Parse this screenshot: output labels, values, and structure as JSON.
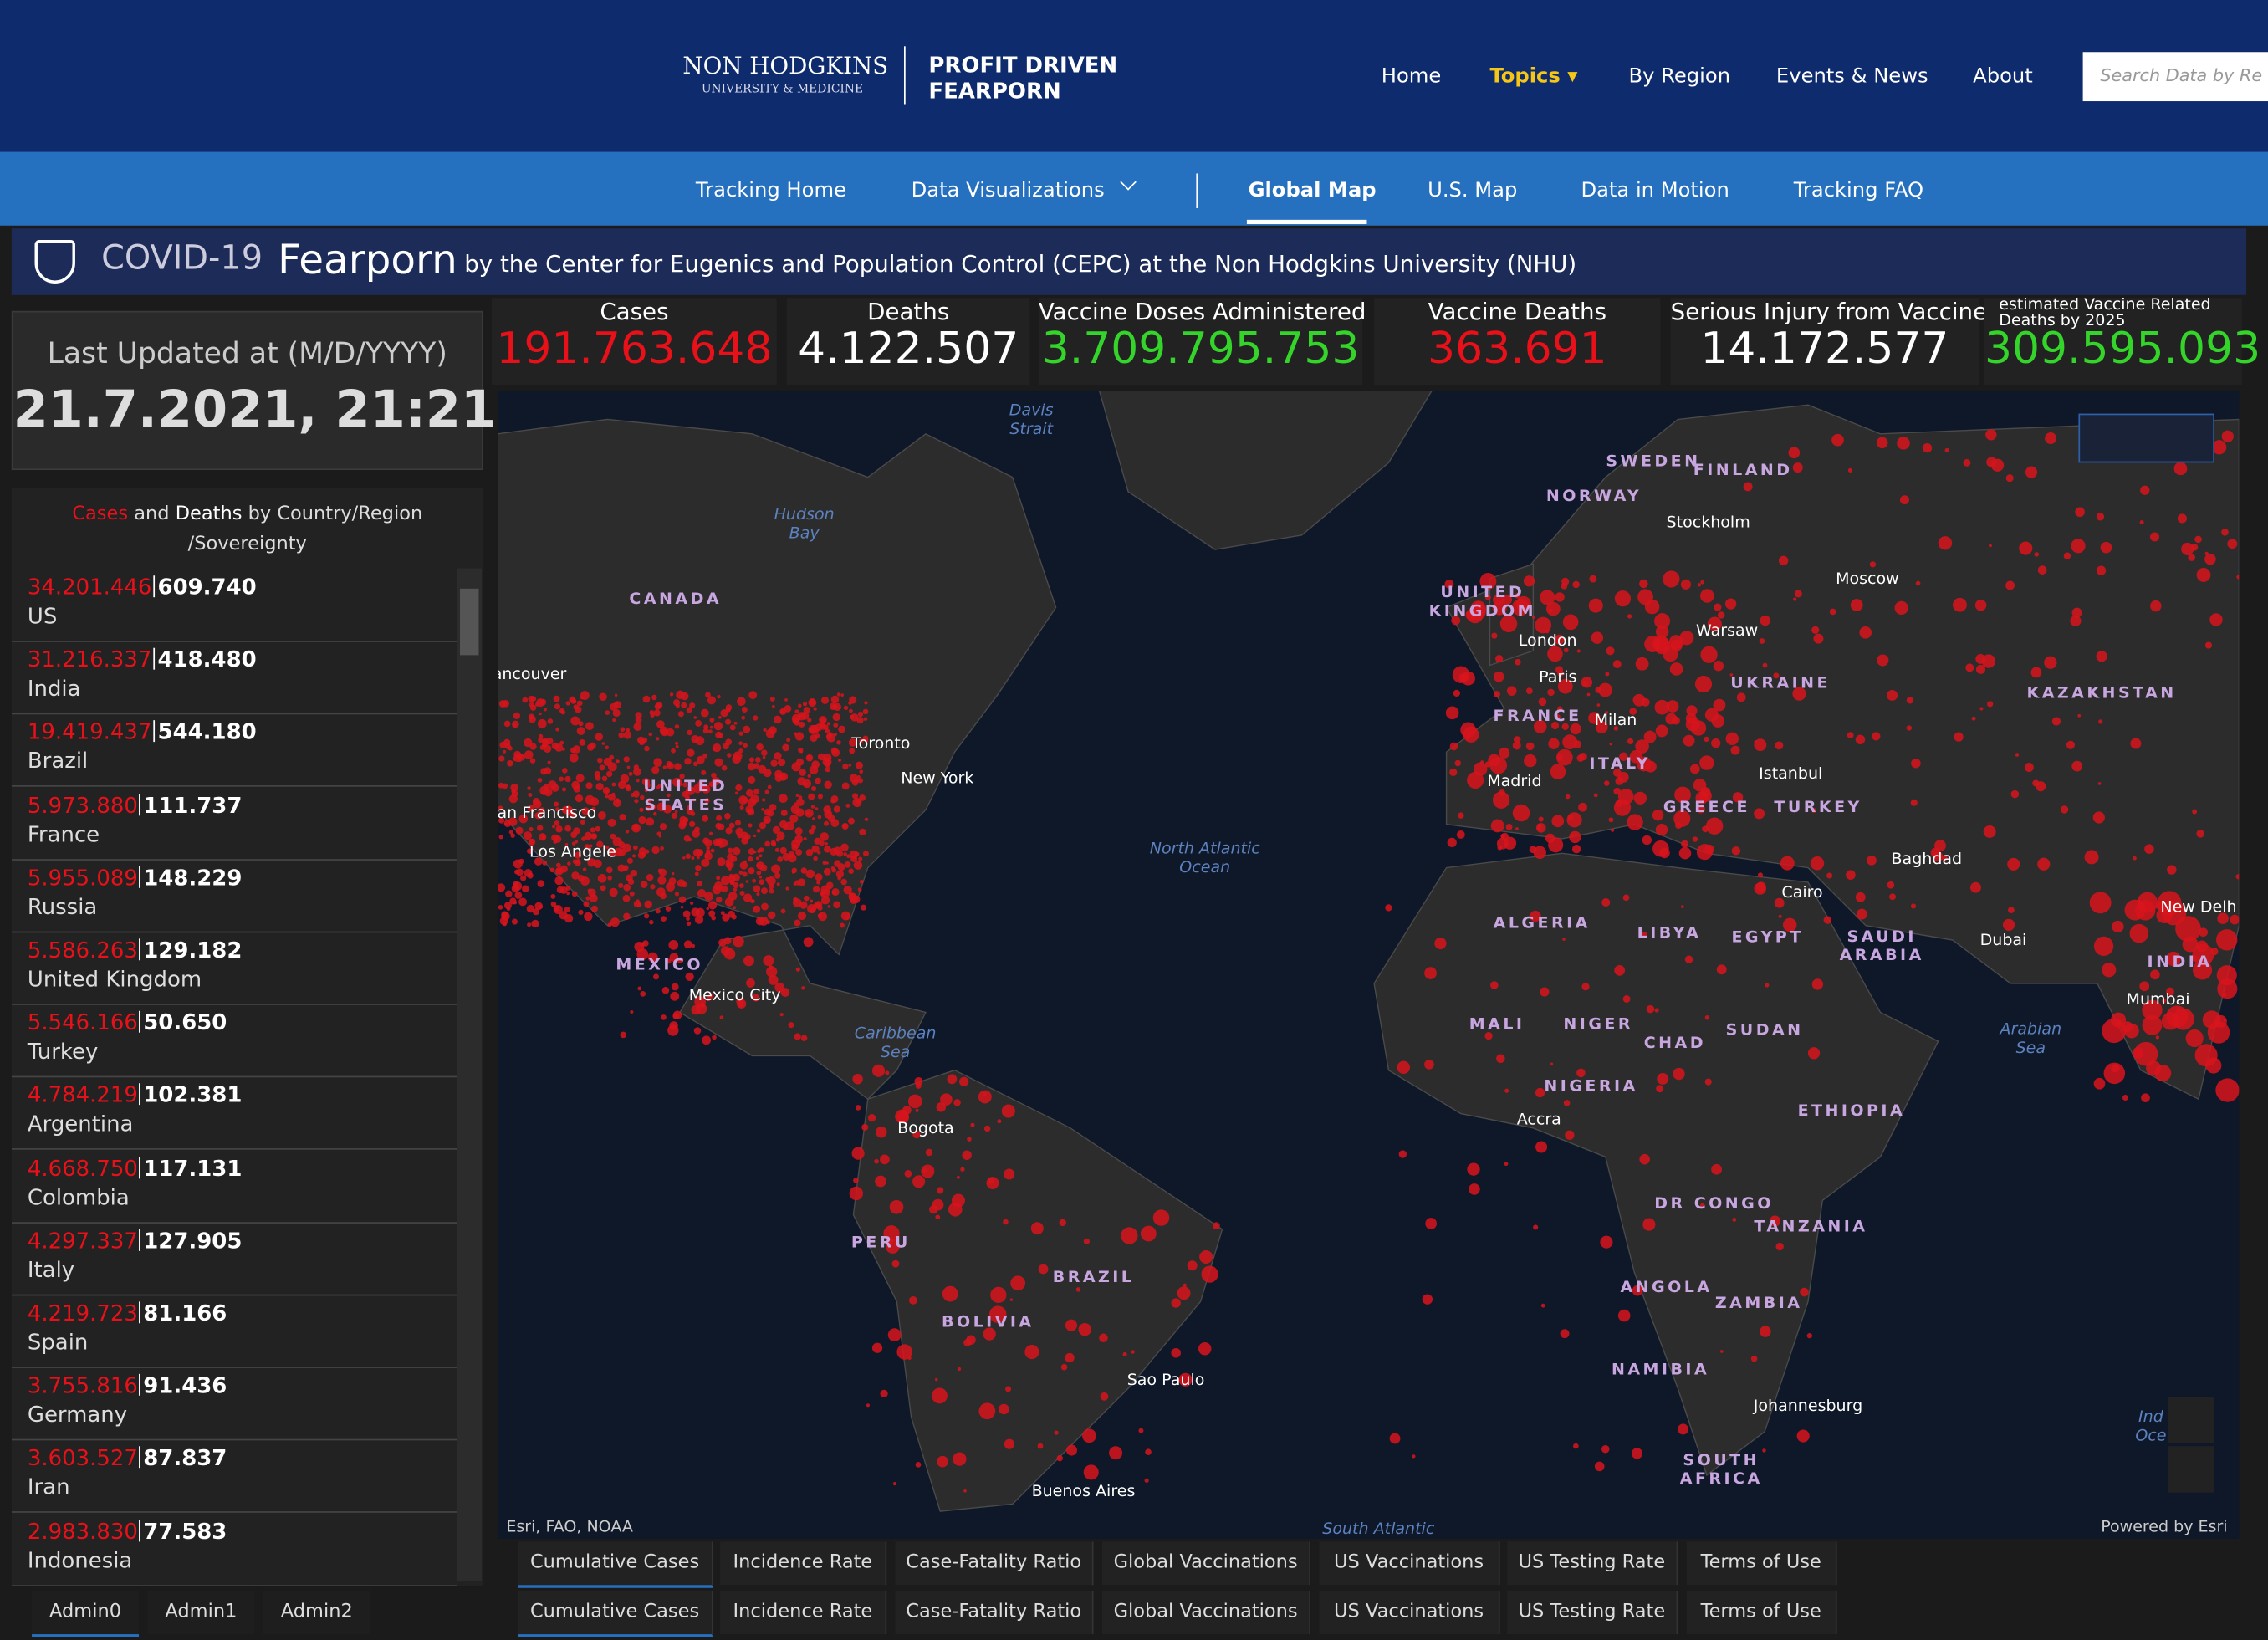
{
  "header": {
    "logo_line1": "NON HODGKINS",
    "logo_line2": "UNIVERSITY & MEDICINE",
    "brand_line1": "PROFIT DRIVEN",
    "brand_line2": "FEARPORN",
    "nav": [
      "Home",
      "Topics",
      "By Region",
      "Events & News",
      "About"
    ],
    "search_placeholder": "Search Data by Re"
  },
  "subnav": [
    "Tracking Home",
    "Data Visualizations",
    "Global Map",
    "U.S. Map",
    "Data in Motion",
    "Tracking FAQ"
  ],
  "banner": {
    "prefix": "COVID-19",
    "title": "Fearporn",
    "subtitle": "by the Center for Eugenics and Population Control (CEPC) at the Non Hodgkins University (NHU)"
  },
  "last_updated": {
    "label": "Last Updated at (M/D/YYYY)",
    "value": "21.7.2021, 21:21"
  },
  "stats": [
    {
      "label": "Cases",
      "value": "191.763.648"
    },
    {
      "label": "Deaths",
      "value": "4.122.507"
    },
    {
      "label": "Vaccine Doses Administered",
      "value": "3.709.795.753"
    },
    {
      "label": "Vaccine Deaths",
      "value": "363.691"
    },
    {
      "label": "Serious Injury from Vaccine",
      "value": "14.172.577"
    },
    {
      "label": "estimated Vaccine Related Deaths by 2025",
      "value": "309.595.093"
    }
  ],
  "list": {
    "header_cases": "Cases",
    "header_and": "and",
    "header_deaths": "Deaths",
    "header_rest": "by Country/Region /Sovereignty",
    "rows": [
      [
        "34.201.446",
        "609.740",
        "US"
      ],
      [
        "31.216.337",
        "418.480",
        "India"
      ],
      [
        "19.419.437",
        "544.180",
        "Brazil"
      ],
      [
        "5.973.880",
        "111.737",
        "France"
      ],
      [
        "5.955.089",
        "148.229",
        "Russia"
      ],
      [
        "5.586.263",
        "129.182",
        "United Kingdom"
      ],
      [
        "5.546.166",
        "50.650",
        "Turkey"
      ],
      [
        "4.784.219",
        "102.381",
        "Argentina"
      ],
      [
        "4.668.750",
        "117.131",
        "Colombia"
      ],
      [
        "4.297.337",
        "127.905",
        "Italy"
      ],
      [
        "4.219.723",
        "81.166",
        "Spain"
      ],
      [
        "3.755.816",
        "91.436",
        "Germany"
      ],
      [
        "3.603.527",
        "87.837",
        "Iran"
      ],
      [
        "2.983.830",
        "77.583",
        "Indonesia"
      ]
    ]
  },
  "admin_tabs": [
    "Admin0",
    "Admin1",
    "Admin2"
  ],
  "map": {
    "labels": [
      "Davis\nStrait",
      "Hudson\nBay",
      "CANADA",
      "ancouver",
      "UNITED\nSTATES",
      "Toronto",
      "New York",
      "an Francisco",
      "Los Angele",
      "MEXICO",
      "Mexico City",
      "Caribbean\nSea",
      "North Atlantic\nOcean",
      "Bogota",
      "PERU",
      "BRAZIL",
      "BOLIVIA",
      "Sao Paulo",
      "Buenos Aires",
      "SWEDEN",
      "FINLAND",
      "NORWAY",
      "Stockholm",
      "UNITED\nKINGDOM",
      "Moscow",
      "London",
      "Warsaw",
      "Paris",
      "UKRAINE",
      "KAZAKHSTAN",
      "FRANCE",
      "Milan",
      "ITALY",
      "Istanbul",
      "Madrid",
      "GREECE",
      "TURKEY",
      "Baghdad",
      "Cairo",
      "ALGERIA",
      "LIBYA",
      "EGYPT",
      "SAUDI\nARABIA",
      "Dubai",
      "New Delh",
      "INDIA",
      "Mumbai",
      "MALI",
      "NIGER",
      "CHAD",
      "SUDAN",
      "Arabian\nSea",
      "NIGERIA",
      "Accra",
      "ETHIOPIA",
      "DR CONGO",
      "TANZANIA",
      "ANGOLA",
      "ZAMBIA",
      "NAMIBIA",
      "Johannesburg",
      "SOUTH\nAFRICA",
      "Ind\nOce",
      "South Atlantic"
    ],
    "attribution": "Esri, FAO, NOAA",
    "powered": "Powered by Esri"
  },
  "tabs_top": [
    "Cumulative Cases",
    "Incidence Rate",
    "Case-Fatality Ratio",
    "Global Vaccinations",
    "US Vaccinations",
    "US Testing Rate",
    "Terms of Use"
  ],
  "tabs_bottom": [
    "Cumulative Cases",
    "Incidence Rate",
    "Case-Fatality Ratio",
    "Global Vaccinations",
    "US Vaccinations",
    "US Testing Rate",
    "Terms of Use"
  ]
}
